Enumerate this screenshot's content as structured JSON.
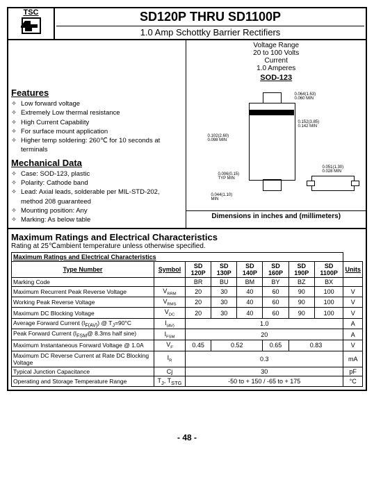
{
  "logo": {
    "tsc": "TSC",
    "symbol": "卐"
  },
  "header": {
    "title_prefix": "SD120P",
    "title_mid": " THRU ",
    "title_suffix": "SD1100P",
    "subtitle": "1.0 Amp Schottky Barrier Rectifiers"
  },
  "specs": {
    "line1": "Voltage Range",
    "line2": "20 to 100 Volts",
    "line3": "Current",
    "line4": "1.0 Amperes"
  },
  "package_label": "SOD-123",
  "dims_note": "Dimensions in inches and (millimeters)",
  "features": {
    "title": "Features",
    "items": [
      "Low forward voltage",
      "Extremely Low thermal resistance",
      "High Current Capability",
      "For surface mount application",
      "Higher temp soldering: 260℃ for 10 seconds at terminals"
    ]
  },
  "mechanical": {
    "title": "Mechanical Data",
    "items": [
      "Case: SOD-123, plastic",
      "Polarity: Cathode band",
      "Lead: Axial leads, solderable per MIL-STD-202, method 208 guaranteed",
      "Mounting position: Any",
      "Marking: As below table"
    ]
  },
  "ratings": {
    "title": "Maximum Ratings and Electrical Characteristics",
    "subtitle": "Rating at 25℃ambient temperature unless otherwise specified.",
    "table_title": "Maximum Ratings and Electrical Characteristics",
    "col_type": "Type Number",
    "col_symbol": "Symbol",
    "col_units": "Units",
    "parts": [
      "SD 120P",
      "SD 130P",
      "SD 140P",
      "SD 160P",
      "SD 190P",
      "SD 1100P"
    ]
  },
  "rows": [
    {
      "label": "Marking Code",
      "symbol": "",
      "cells": [
        "BR",
        "BU",
        "BM",
        "BY",
        "BZ",
        "BX"
      ],
      "unit": ""
    },
    {
      "label": "Maximum Recurrent Peak Reverse Voltage",
      "symbol": "V",
      "sub": "RRM",
      "cells": [
        "20",
        "30",
        "40",
        "60",
        "90",
        "100"
      ],
      "unit": "V"
    },
    {
      "label": "Working Peak Reverse Voltage",
      "symbol": "V",
      "sub": "RMS",
      "cells": [
        "20",
        "30",
        "40",
        "60",
        "90",
        "100"
      ],
      "unit": "V"
    },
    {
      "label": "Maximum DC Blocking Voltage",
      "symbol": "V",
      "sub": "DC",
      "cells": [
        "20",
        "30",
        "40",
        "60",
        "90",
        "100"
      ],
      "unit": "V"
    },
    {
      "label_html": "Average Forward Current (I<sub>F(AV)</sub>) @ T<sub>J</sub>=90°C",
      "symbol": "I",
      "sub": "(AV)",
      "span": "1.0",
      "unit": "A"
    },
    {
      "label_html": "Peak Forward Current (I<sub>FSM</sub>@ 8.3ms half sine)",
      "symbol": "I",
      "sub": "FSM",
      "span": "20",
      "unit": "A"
    },
    {
      "label": "Maximum Instantaneous Forward Voltage @ 1.0A",
      "symbol": "V",
      "sub": "F",
      "merged": [
        {
          "v": "0.45",
          "c": 1
        },
        {
          "v": "0.52",
          "c": 2
        },
        {
          "v": "0.65",
          "c": 1
        },
        {
          "v": "0.83",
          "c": 2
        }
      ],
      "unit": "V"
    },
    {
      "label": "Maximum DC Reverse Current at Rate DC Blocking Voltage",
      "symbol": "I",
      "sub": "R",
      "span": "0.3",
      "unit": "mA"
    },
    {
      "label": "Typical Junction Capacitance",
      "symbol": "Cj",
      "span": "30",
      "unit": "pF"
    },
    {
      "label": "Operating and Storage Temperature Range",
      "symbol_html": "T<sub>J</sub>, T<sub>STG</sub>",
      "span": "-50 to + 150 / -65 to + 175",
      "unit": "°C"
    }
  ],
  "page_num": "-  48  -"
}
